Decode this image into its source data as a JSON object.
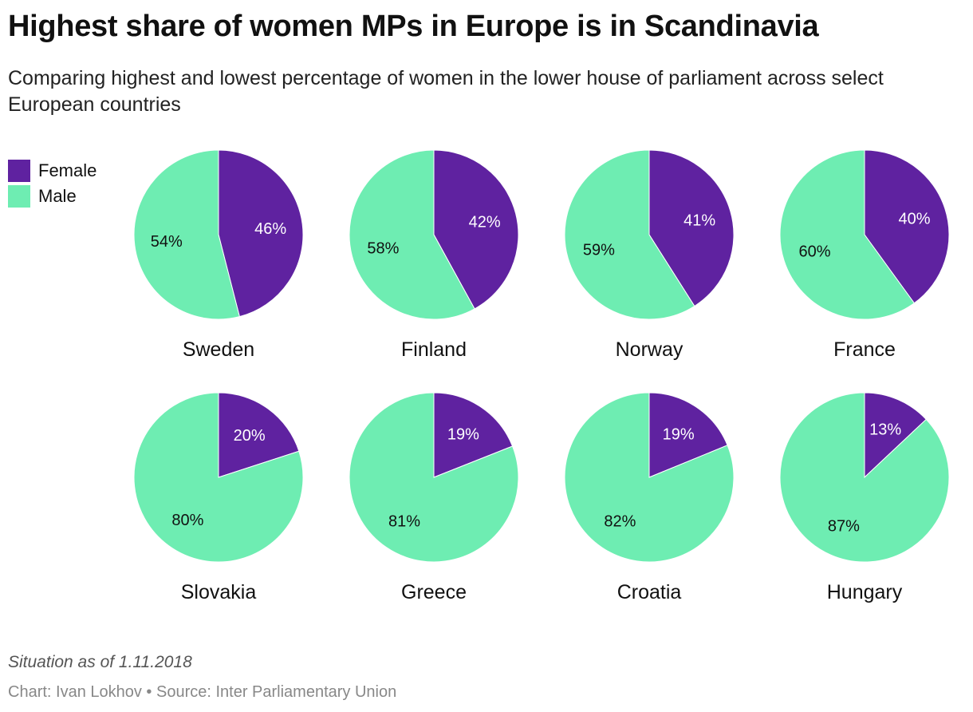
{
  "title": "Highest share of women MPs in Europe is in Scandinavia",
  "subtitle": "Comparing highest and lowest percentage of women in the lower house of parliament across select European countries",
  "note": "Situation as of 1.11.2018",
  "credit": "Chart: Ivan Lokhov • Source: Inter Parliamentary Union",
  "colors": {
    "female": "#5f22a0",
    "male": "#6eedb2"
  },
  "chart_data": {
    "type": "pie",
    "legend": [
      "Female",
      "Male"
    ],
    "legend_position": "top-left",
    "charts": [
      {
        "label": "Sweden",
        "female": 46,
        "male": 54
      },
      {
        "label": "Finland",
        "female": 42,
        "male": 58
      },
      {
        "label": "Norway",
        "female": 41,
        "male": 59
      },
      {
        "label": "France",
        "female": 40,
        "male": 60
      },
      {
        "label": "Slovakia",
        "female": 20,
        "male": 80
      },
      {
        "label": "Greece",
        "female": 19,
        "male": 81
      },
      {
        "label": "Croatia",
        "female": 19,
        "male": 82
      },
      {
        "label": "Hungary",
        "female": 13,
        "male": 87
      }
    ]
  }
}
